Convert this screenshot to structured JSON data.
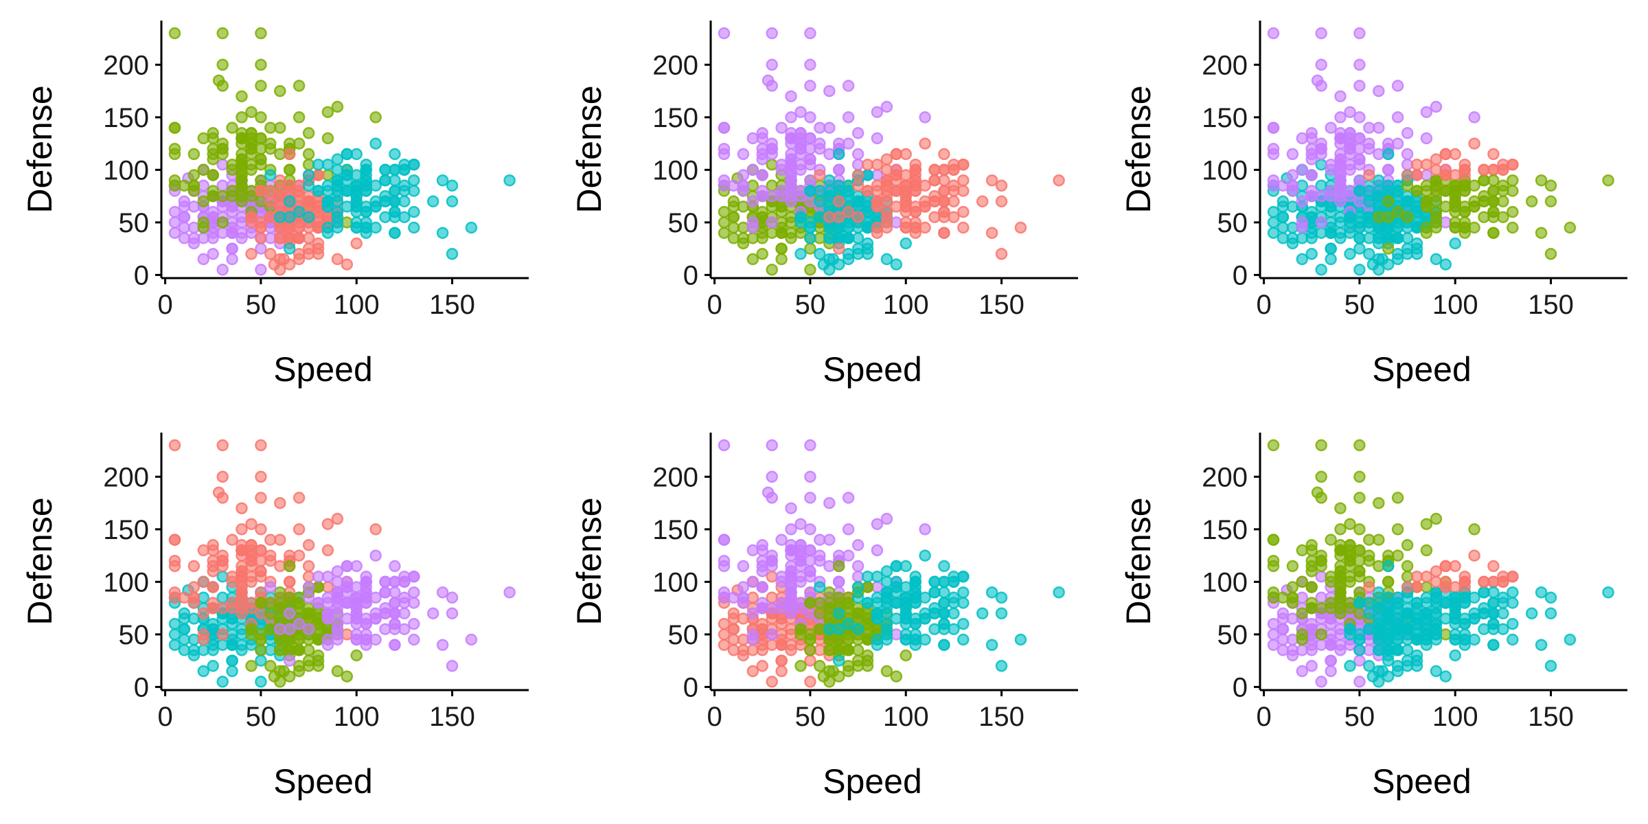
{
  "chart_data": {
    "type": "scatter",
    "layout": "2 rows x 3 columns of scatter panels",
    "xlabel": "Speed",
    "ylabel": "Defense",
    "xlim": [
      -2,
      190
    ],
    "ylim": [
      -3,
      242
    ],
    "x_ticks": [
      0,
      50,
      100,
      150
    ],
    "y_ticks": [
      0,
      50,
      100,
      150,
      200
    ],
    "grid": false,
    "legend": "none",
    "point_opacity": 0.6,
    "palette": {
      "red": "#F8766D",
      "green": "#7CAE00",
      "cyan": "#00BFC4",
      "purple": "#C77CFF"
    },
    "clusters": [
      {
        "id": "slow_low",
        "center": [
          40,
          60
        ],
        "spread": [
          17,
          18
        ],
        "n": 130,
        "extra": [
          [
            5,
            40
          ],
          [
            10,
            45
          ],
          [
            12,
            92
          ],
          [
            15,
            30
          ],
          [
            20,
            15
          ],
          [
            25,
            20
          ],
          [
            30,
            5
          ],
          [
            35,
            25
          ],
          [
            50,
            5
          ]
        ]
      },
      {
        "id": "slow_high",
        "center": [
          42,
          108
        ],
        "spread": [
          20,
          28
        ],
        "n": 120,
        "extra": [
          [
            5,
            230
          ],
          [
            30,
            230
          ],
          [
            50,
            230
          ],
          [
            30,
            200
          ],
          [
            50,
            200
          ],
          [
            28,
            185
          ],
          [
            30,
            180
          ],
          [
            50,
            180
          ],
          [
            70,
            180
          ],
          [
            50,
            150
          ],
          [
            90,
            160
          ],
          [
            110,
            150
          ],
          [
            40,
            150
          ],
          [
            60,
            140
          ]
        ]
      },
      {
        "id": "mid_low",
        "center": [
          70,
          55
        ],
        "spread": [
          12,
          18
        ],
        "n": 120,
        "extra": [
          [
            57,
            10
          ],
          [
            62,
            15
          ],
          [
            70,
            20
          ],
          [
            80,
            20
          ],
          [
            90,
            15
          ],
          [
            100,
            30
          ]
        ]
      },
      {
        "id": "fast",
        "center": [
          103,
          75
        ],
        "spread": [
          17,
          20
        ],
        "n": 120,
        "extra": [
          [
            130,
            80
          ],
          [
            140,
            70
          ],
          [
            145,
            40
          ],
          [
            150,
            20
          ],
          [
            150,
            70
          ],
          [
            150,
            85
          ],
          [
            160,
            45
          ],
          [
            180,
            90
          ],
          [
            120,
            60
          ],
          [
            125,
            55
          ]
        ]
      }
    ],
    "panels": [
      {
        "colors": {
          "slow_low": "#C77CFF",
          "slow_high": "#7CAE00",
          "mid_low": "#F8766D",
          "fast": "#00BFC4"
        }
      },
      {
        "colors": {
          "slow_low": "#7CAE00",
          "slow_high": "#C77CFF",
          "mid_low": "#00BFC4",
          "fast": "#F8766D"
        }
      },
      {
        "colors": {
          "slow_low": "#00BFC4",
          "slow_high": "#C77CFF",
          "mid_low": "#00BFC4",
          "fast": "#7CAE00",
          "fast_high": "#F8766D"
        }
      },
      {
        "colors": {
          "slow_low": "#00BFC4",
          "slow_high": "#F8766D",
          "mid_low": "#7CAE00",
          "fast": "#C77CFF"
        }
      },
      {
        "colors": {
          "slow_low": "#F8766D",
          "slow_high": "#C77CFF",
          "mid_low": "#7CAE00",
          "fast": "#00BFC4"
        }
      },
      {
        "colors": {
          "slow_low": "#C77CFF",
          "slow_high": "#7CAE00",
          "mid_low": "#00BFC4",
          "fast": "#00BFC4",
          "fast_high": "#F8766D"
        }
      }
    ]
  }
}
